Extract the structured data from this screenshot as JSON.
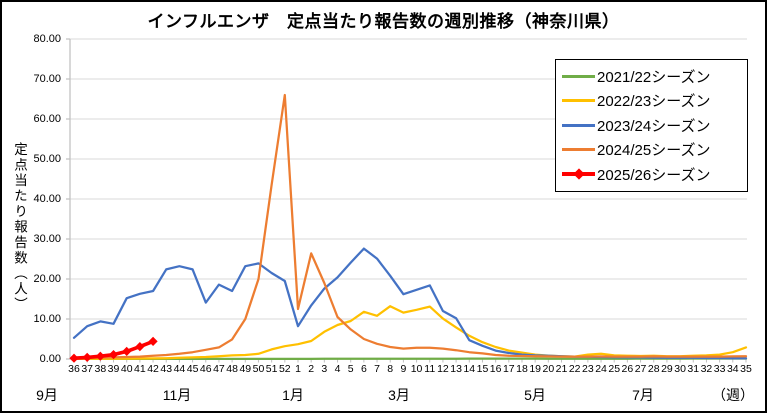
{
  "chart_title": "インフルエンザ　定点当たり報告数の週別推移（神奈川県）",
  "y_axis_title": "定点当たり報告数（人）",
  "chart_data": {
    "type": "line",
    "title": "インフルエンザ　定点当たり報告数の週別推移（神奈川県）",
    "ylabel": "定点当たり報告数（人）",
    "xlabel": "（週）",
    "ylim": [
      0,
      80
    ],
    "grid": "horizontal",
    "legend_position": "upper-right-inside",
    "y_tick_labels": [
      "80.00",
      "70.00",
      "60.00",
      "50.00",
      "40.00",
      "30.00",
      "20.00",
      "10.00",
      "0.00"
    ],
    "categories": [
      "36",
      "37",
      "38",
      "39",
      "40",
      "41",
      "42",
      "43",
      "44",
      "45",
      "46",
      "47",
      "48",
      "49",
      "50",
      "51",
      "52",
      "1",
      "2",
      "3",
      "4",
      "5",
      "6",
      "7",
      "8",
      "9",
      "10",
      "11",
      "12",
      "13",
      "14",
      "15",
      "16",
      "17",
      "18",
      "19",
      "20",
      "21",
      "22",
      "23",
      "24",
      "25",
      "26",
      "27",
      "28",
      "29",
      "30",
      "31",
      "32",
      "33",
      "34",
      "35"
    ],
    "month_labels": [
      "9月",
      "11月",
      "1月",
      "3月",
      "5月",
      "7月",
      "（週）"
    ],
    "series": [
      {
        "name": "2021/22シーズン",
        "color": "#70AD47",
        "marker": false,
        "values": [
          0.02,
          0.02,
          0.02,
          0.02,
          0.02,
          0.02,
          0.02,
          0.02,
          0.02,
          0.02,
          0.02,
          0.02,
          0.02,
          0.02,
          0.02,
          0.02,
          0.02,
          0.03,
          0.03,
          0.04,
          0.04,
          0.05,
          0.05,
          0.05,
          0.05,
          0.06,
          0.08,
          0.08,
          0.08,
          0.08,
          0.1,
          0.1,
          0.1,
          0.1,
          0.1,
          0.1,
          0.08,
          0.08,
          0.08,
          0.08,
          0.08,
          0.08,
          0.08,
          0.1,
          0.1,
          0.1,
          0.1,
          0.12,
          0.12,
          0.12,
          0.12,
          0.12
        ]
      },
      {
        "name": "2022/23シーズン",
        "color": "#FFC000",
        "marker": false,
        "values": [
          0.05,
          0.05,
          0.06,
          0.08,
          0.1,
          0.12,
          0.15,
          0.2,
          0.3,
          0.4,
          0.5,
          0.7,
          0.9,
          1.0,
          1.3,
          2.4,
          3.2,
          3.7,
          4.5,
          6.8,
          8.5,
          9.5,
          11.8,
          10.8,
          13.2,
          11.6,
          12.3,
          13.1,
          10.1,
          7.9,
          5.8,
          4.2,
          3.0,
          2.1,
          1.6,
          1.1,
          0.85,
          0.7,
          0.6,
          1.1,
          1.3,
          0.9,
          0.8,
          0.75,
          0.8,
          0.7,
          0.7,
          0.8,
          0.9,
          1.1,
          1.7,
          2.9
        ]
      },
      {
        "name": "2023/24シーズン",
        "color": "#4472C4",
        "marker": false,
        "values": [
          5.3,
          8.2,
          9.4,
          8.8,
          15.2,
          16.3,
          17.0,
          22.4,
          23.2,
          22.4,
          14.1,
          18.6,
          17.0,
          23.2,
          23.9,
          21.5,
          19.5,
          8.2,
          13.4,
          17.6,
          20.4,
          24.1,
          27.6,
          25.1,
          20.8,
          16.2,
          17.3,
          18.4,
          12.0,
          10.2,
          4.7,
          3.3,
          2.1,
          1.5,
          1.1,
          0.9,
          0.8,
          0.7,
          0.6,
          0.55,
          0.5,
          0.45,
          0.4,
          0.4,
          0.35,
          0.3,
          0.3,
          0.3,
          0.25,
          0.25,
          0.2,
          0.2
        ]
      },
      {
        "name": "2024/25シーズン",
        "color": "#ED7D31",
        "marker": false,
        "values": [
          0.3,
          0.3,
          0.35,
          0.4,
          0.5,
          0.6,
          0.8,
          1.0,
          1.3,
          1.7,
          2.3,
          2.9,
          4.9,
          10.0,
          20.0,
          43.5,
          66.0,
          12.5,
          26.4,
          19.0,
          10.5,
          7.4,
          5.0,
          3.8,
          3.0,
          2.6,
          2.8,
          2.8,
          2.6,
          2.2,
          1.7,
          1.4,
          1.0,
          0.8,
          0.75,
          0.7,
          0.65,
          0.6,
          0.6,
          0.6,
          0.65,
          0.6,
          0.6,
          0.6,
          0.65,
          0.6,
          0.6,
          0.6,
          0.6,
          0.6,
          0.65,
          0.7
        ]
      },
      {
        "name": "2025/26シーズン",
        "color": "#FF0000",
        "marker": true,
        "values": [
          0.2,
          0.4,
          0.7,
          1.1,
          1.9,
          3.1,
          4.4,
          null,
          null,
          null,
          null,
          null,
          null,
          null,
          null,
          null,
          null,
          null,
          null,
          null,
          null,
          null,
          null,
          null,
          null,
          null,
          null,
          null,
          null,
          null,
          null,
          null,
          null,
          null,
          null,
          null,
          null,
          null,
          null,
          null,
          null,
          null,
          null,
          null,
          null,
          null,
          null,
          null,
          null,
          null,
          null,
          null
        ]
      }
    ]
  }
}
